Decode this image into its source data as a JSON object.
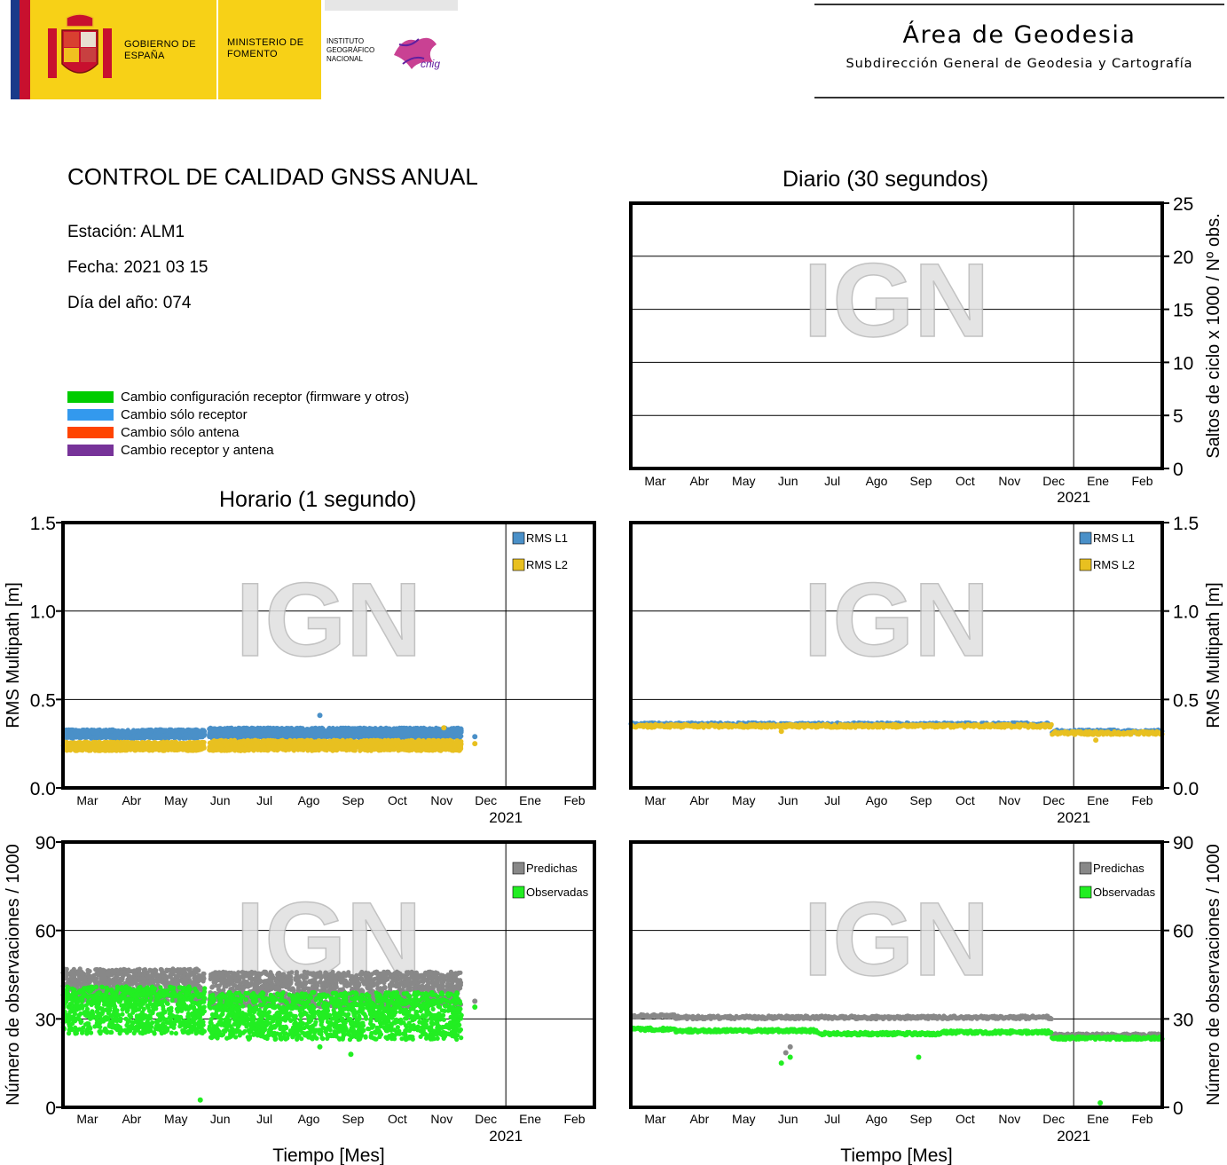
{
  "header": {
    "gobierno": "GOBIERNO DE ESPAÑA",
    "ministerio": "MINISTERIO DE FOMENTO",
    "instituto": "INSTITUTO GEOGRÁFICO NACIONAL",
    "cnig_logo": "cnig",
    "area_title": "Área de Geodesia",
    "area_subtitle": "Subdirección General de Geodesia y Cartografía"
  },
  "info": {
    "title": "CONTROL DE CALIDAD GNSS ANUAL",
    "station": "Estación: ALM1",
    "date": "Fecha: 2021 03 15",
    "doy": "Día del año: 074"
  },
  "change_legend": [
    {
      "label": "Cambio configuración receptor (firmware y otros)",
      "color": "#00cc00"
    },
    {
      "label": "Cambio sólo receptor",
      "color": "#3399ee"
    },
    {
      "label": "Cambio sólo antena",
      "color": "#ff4400"
    },
    {
      "label": "Cambio receptor y antena",
      "color": "#773399"
    }
  ],
  "sections": {
    "daily": "Diario (30 segundos)",
    "hourly": "Horario (1 segundo)"
  },
  "watermark": "IGN",
  "colors": {
    "rms_l1": "#4a90c8",
    "rms_l2": "#e8c020",
    "predichas": "#888888",
    "observadas": "#22ee22"
  },
  "chart_data": [
    {
      "id": "daily-cycle-slips",
      "type": "scatter",
      "title": "Diario (30 segundos)",
      "ylabel": "Saltos de ciclo x 1000 / Nº obs.",
      "ylim": [
        0,
        25
      ],
      "yticks": [
        "0",
        "5",
        "10",
        "15",
        "20",
        "25"
      ],
      "xticks": [
        "Mar",
        "Abr",
        "May",
        "Jun",
        "Jul",
        "Ago",
        "Sep",
        "Oct",
        "Nov",
        "Dec",
        "Ene",
        "Feb"
      ],
      "year_label": "2021",
      "series": []
    },
    {
      "id": "hourly-rms",
      "type": "scatter",
      "ylabel": "RMS Multipath [m]",
      "ylim": [
        0,
        1.5
      ],
      "yticks": [
        "0.0",
        "0.5",
        "1.0",
        "1.5"
      ],
      "xticks": [
        "Mar",
        "Abr",
        "May",
        "Jun",
        "Jul",
        "Ago",
        "Sep",
        "Oct",
        "Nov",
        "Dec",
        "Ene",
        "Feb"
      ],
      "year_label": "2021",
      "legend": [
        "RMS L1",
        "RMS L2"
      ],
      "series": [
        {
          "name": "RMS L1",
          "bands": [
            {
              "x": [
                0,
                3.2
              ],
              "y": [
                0.28,
                0.33
              ]
            },
            {
              "x": [
                3.3,
                9.0
              ],
              "y": [
                0.28,
                0.34
              ]
            }
          ],
          "outliers": [
            [
              5.8,
              0.41
            ],
            [
              9.3,
              0.29
            ]
          ]
        },
        {
          "name": "RMS L2",
          "bands": [
            {
              "x": [
                0,
                3.2
              ],
              "y": [
                0.21,
                0.26
              ]
            },
            {
              "x": [
                3.3,
                9.0
              ],
              "y": [
                0.21,
                0.27
              ]
            }
          ],
          "outliers": [
            [
              9.3,
              0.25
            ],
            [
              8.6,
              0.34
            ]
          ]
        }
      ]
    },
    {
      "id": "daily-rms",
      "type": "line",
      "ylabel": "RMS Multipath [m]",
      "ylim": [
        0,
        1.5
      ],
      "yticks": [
        "0.0",
        "0.5",
        "1.0",
        "1.5"
      ],
      "xticks": [
        "Mar",
        "Abr",
        "May",
        "Jun",
        "Jul",
        "Ago",
        "Sep",
        "Oct",
        "Nov",
        "Dec",
        "Ene",
        "Feb"
      ],
      "year_label": "2021",
      "legend": [
        "RMS L1",
        "RMS L2"
      ],
      "series": [
        {
          "name": "RMS L1",
          "segments": [
            [
              0,
              9.5,
              0.36
            ],
            [
              9.5,
              12,
              0.32
            ]
          ]
        },
        {
          "name": "RMS L2",
          "segments": [
            [
              0,
              9.5,
              0.35
            ],
            [
              9.5,
              12,
              0.31
            ]
          ],
          "outliers": [
            [
              10.5,
              0.27
            ],
            [
              3.4,
              0.32
            ]
          ]
        }
      ]
    },
    {
      "id": "hourly-obs",
      "type": "scatter",
      "ylabel": "Número de observaciones / 1000",
      "xlabel": "Tiempo [Mes]",
      "ylim": [
        0,
        90
      ],
      "yticks": [
        "0",
        "30",
        "60",
        "90"
      ],
      "xticks": [
        "Mar",
        "Abr",
        "May",
        "Jun",
        "Jul",
        "Ago",
        "Sep",
        "Oct",
        "Nov",
        "Dec",
        "Ene",
        "Feb"
      ],
      "year_label": "2021",
      "legend": [
        "Predichas",
        "Observadas"
      ],
      "series": [
        {
          "name": "Predichas",
          "bands": [
            {
              "x": [
                0,
                3.2
              ],
              "y": [
                36,
                47
              ]
            },
            {
              "x": [
                3.3,
                9.0
              ],
              "y": [
                34,
                46
              ]
            }
          ],
          "outliers": [
            [
              9.3,
              36
            ]
          ]
        },
        {
          "name": "Observadas",
          "bands": [
            {
              "x": [
                0,
                3.2
              ],
              "y": [
                25,
                41
              ]
            },
            {
              "x": [
                3.3,
                9.0
              ],
              "y": [
                23,
                39
              ]
            }
          ],
          "outliers": [
            [
              3.1,
              2.5
            ],
            [
              5.8,
              20.5
            ],
            [
              6.5,
              18
            ],
            [
              9.3,
              34
            ]
          ]
        }
      ]
    },
    {
      "id": "daily-obs",
      "type": "line",
      "ylabel": "Número de observaciones / 1000",
      "xlabel": "Tiempo [Mes]",
      "ylim": [
        0,
        90
      ],
      "yticks": [
        "0",
        "30",
        "60",
        "90"
      ],
      "xticks": [
        "Mar",
        "Abr",
        "May",
        "Jun",
        "Jul",
        "Ago",
        "Sep",
        "Oct",
        "Nov",
        "Dec",
        "Ene",
        "Feb"
      ],
      "year_label": "2021",
      "legend": [
        "Predichas",
        "Observadas"
      ],
      "series": [
        {
          "name": "Predichas",
          "segments": [
            [
              0,
              1.0,
              31
            ],
            [
              1.0,
              9.5,
              30.5
            ],
            [
              9.5,
              12,
              24.5
            ]
          ],
          "outliers": [
            [
              3.5,
              18.5
            ],
            [
              3.6,
              20.5
            ]
          ]
        },
        {
          "name": "Observadas",
          "segments": [
            [
              0,
              1.0,
              26.5
            ],
            [
              1.0,
              4.2,
              26
            ],
            [
              4.2,
              7.0,
              25
            ],
            [
              7.0,
              9.5,
              25.5
            ],
            [
              9.5,
              12,
              23.5
            ]
          ],
          "outliers": [
            [
              3.4,
              15
            ],
            [
              3.6,
              17
            ],
            [
              6.5,
              17
            ],
            [
              10.6,
              1.5
            ]
          ]
        }
      ]
    }
  ]
}
